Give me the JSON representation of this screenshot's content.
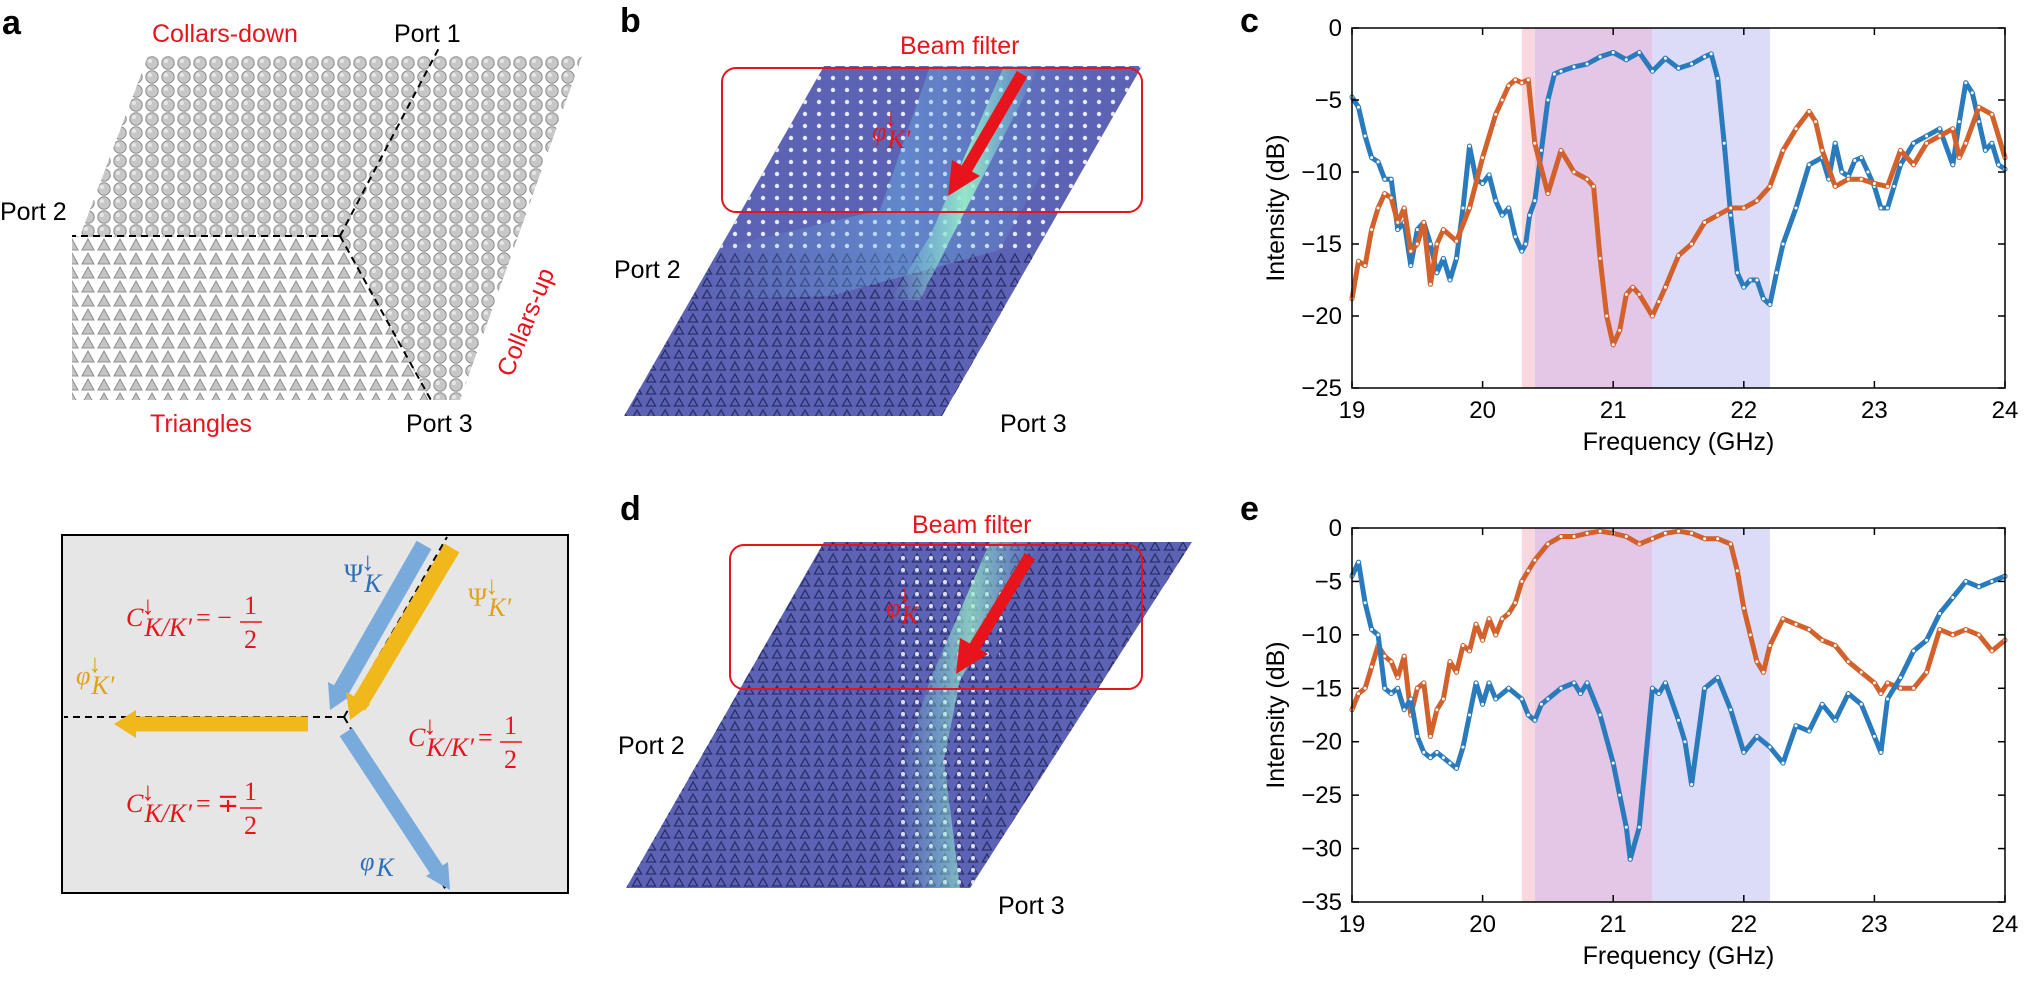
{
  "panels": {
    "a": "a",
    "b": "b",
    "c": "c",
    "d": "d",
    "e": "e"
  },
  "panel_a": {
    "collars_down": "Collars-down",
    "collars_up": "Collars-up",
    "triangles": "Triangles",
    "port1": "Port 1",
    "port2": "Port 2",
    "port3": "Port 3"
  },
  "panel_a_bottom": {
    "psi_K": "Ψ",
    "psi_K_sub": "K",
    "psi_Kp": "Ψ",
    "psi_Kp_sub": "K′",
    "phi_Kp": "φ",
    "phi_Kp_sub": "K′",
    "phi_K": "φ",
    "phi_K_sub": "K",
    "c_sym": "C",
    "c_sub": "K/K′",
    "arrow_sup": "↓",
    "eq1": "= −",
    "eq2": "=",
    "eq3": "= ∓",
    "num": "1",
    "den": "2"
  },
  "panel_b": {
    "beam_filter": "Beam filter",
    "port2": "Port 2",
    "port3": "Port 3",
    "mode": "φ",
    "mode_sub": "K′",
    "mode_sup": "↓"
  },
  "panel_d": {
    "beam_filter": "Beam filter",
    "port2": "Port 2",
    "port3": "Port 3",
    "mode": "φ",
    "mode_sub": "K",
    "mode_sup": "↓"
  },
  "colors": {
    "red": "#e8141c",
    "blue": "#2a7bbd",
    "orange": "#d2612c",
    "pink_band": "#f8d8de",
    "purple_band": "#e4c6e6",
    "lavender_band": "#dcdcf8",
    "lattice": "#5e62b6"
  },
  "chart_data": [
    {
      "panel": "c",
      "type": "line",
      "xlabel": "Frequency (GHz)",
      "ylabel": "Intensity (dB)",
      "xlim": [
        19,
        24
      ],
      "ylim": [
        -25,
        0
      ],
      "xticks": [
        19,
        20,
        21,
        22,
        23,
        24
      ],
      "yticks": [
        0,
        -5,
        -10,
        -15,
        -20,
        -25
      ],
      "bands": [
        {
          "from": 20.3,
          "to": 20.4,
          "color": "#f8d8de"
        },
        {
          "from": 20.4,
          "to": 21.3,
          "color": "#e4c6e6"
        },
        {
          "from": 21.3,
          "to": 22.2,
          "color": "#dcdcf8"
        }
      ],
      "series": [
        {
          "color": "#2a7bbd",
          "x": [
            19.0,
            19.05,
            19.1,
            19.15,
            19.2,
            19.25,
            19.3,
            19.35,
            19.4,
            19.45,
            19.5,
            19.55,
            19.6,
            19.65,
            19.7,
            19.75,
            19.8,
            19.85,
            19.9,
            19.95,
            20.0,
            20.05,
            20.1,
            20.15,
            20.2,
            20.25,
            20.3,
            20.33,
            20.36,
            20.4,
            20.45,
            20.5,
            20.55,
            20.6,
            20.7,
            20.8,
            20.9,
            21.0,
            21.1,
            21.2,
            21.3,
            21.4,
            21.5,
            21.6,
            21.7,
            21.75,
            21.8,
            21.85,
            21.9,
            21.95,
            22.0,
            22.05,
            22.1,
            22.15,
            22.2,
            22.25,
            22.3,
            22.4,
            22.5,
            22.6,
            22.65,
            22.7,
            22.75,
            22.8,
            22.85,
            22.9,
            22.95,
            23.0,
            23.05,
            23.1,
            23.15,
            23.2,
            23.3,
            23.4,
            23.5,
            23.6,
            23.65,
            23.7,
            23.75,
            23.8,
            23.85,
            23.9,
            23.95,
            24.0
          ],
          "y": [
            -4.8,
            -5.5,
            -7.5,
            -9.0,
            -9.3,
            -10.5,
            -10.5,
            -14.0,
            -13.5,
            -16.5,
            -14.0,
            -13.5,
            -15.0,
            -17.0,
            -16.0,
            -17.5,
            -16.0,
            -12.5,
            -8.2,
            -10.5,
            -10.8,
            -10.2,
            -12.0,
            -13.0,
            -12.5,
            -14.5,
            -15.5,
            -15.0,
            -13.0,
            -12.0,
            -8.5,
            -5.0,
            -3.2,
            -3.0,
            -2.7,
            -2.5,
            -2.0,
            -1.7,
            -2.2,
            -1.7,
            -3.0,
            -2.1,
            -2.8,
            -2.5,
            -2.0,
            -1.8,
            -3.5,
            -8.0,
            -13.0,
            -17.0,
            -18.0,
            -17.5,
            -17.5,
            -18.8,
            -19.2,
            -17.0,
            -15.0,
            -12.5,
            -9.5,
            -9.0,
            -10.5,
            -8.0,
            -10.0,
            -10.3,
            -9.2,
            -9.0,
            -10.0,
            -11.0,
            -12.5,
            -12.5,
            -11.0,
            -9.5,
            -8.0,
            -7.5,
            -7.0,
            -9.5,
            -6.5,
            -3.8,
            -4.5,
            -6.5,
            -8.5,
            -8.0,
            -9.5,
            -9.8
          ]
        },
        {
          "color": "#d2612c",
          "x": [
            19.0,
            19.05,
            19.1,
            19.15,
            19.2,
            19.25,
            19.3,
            19.35,
            19.4,
            19.45,
            19.5,
            19.55,
            19.6,
            19.65,
            19.7,
            19.8,
            19.9,
            20.0,
            20.1,
            20.15,
            20.2,
            20.25,
            20.3,
            20.35,
            20.4,
            20.5,
            20.6,
            20.7,
            20.8,
            20.85,
            20.9,
            20.95,
            21.0,
            21.05,
            21.1,
            21.15,
            21.2,
            21.3,
            21.35,
            21.4,
            21.5,
            21.6,
            21.7,
            21.8,
            21.9,
            22.0,
            22.1,
            22.2,
            22.3,
            22.4,
            22.5,
            22.55,
            22.6,
            22.7,
            22.8,
            22.9,
            23.0,
            23.1,
            23.2,
            23.3,
            23.4,
            23.5,
            23.6,
            23.65,
            23.7,
            23.8,
            23.9,
            24.0
          ],
          "y": [
            -18.8,
            -16.2,
            -16.5,
            -14.0,
            -12.5,
            -11.5,
            -11.8,
            -13.5,
            -12.5,
            -15.5,
            -15.0,
            -13.5,
            -17.8,
            -15.0,
            -14.0,
            -14.8,
            -12.5,
            -9.0,
            -6.0,
            -5.0,
            -4.0,
            -3.6,
            -3.8,
            -3.6,
            -8.0,
            -11.5,
            -8.5,
            -10.0,
            -10.5,
            -11.0,
            -16.0,
            -20.0,
            -22.0,
            -21.0,
            -18.5,
            -18.0,
            -18.5,
            -20.0,
            -19.0,
            -18.0,
            -15.8,
            -15.0,
            -13.5,
            -13.0,
            -12.5,
            -12.5,
            -12.0,
            -11.0,
            -8.5,
            -7.0,
            -5.8,
            -6.5,
            -8.5,
            -11.0,
            -10.5,
            -10.5,
            -10.8,
            -11.0,
            -8.5,
            -9.5,
            -8.0,
            -7.5,
            -7.0,
            -9.0,
            -8.0,
            -5.5,
            -6.0,
            -9.0
          ]
        }
      ]
    },
    {
      "panel": "e",
      "type": "line",
      "xlabel": "Frequency (GHz)",
      "ylabel": "Intensity (dB)",
      "xlim": [
        19,
        24
      ],
      "ylim": [
        -35,
        0
      ],
      "xticks": [
        19,
        20,
        21,
        22,
        23,
        24
      ],
      "yticks": [
        0,
        -5,
        -10,
        -15,
        -20,
        -25,
        -30,
        -35
      ],
      "bands": [
        {
          "from": 20.3,
          "to": 20.4,
          "color": "#f8d8de"
        },
        {
          "from": 20.4,
          "to": 21.3,
          "color": "#e4c6e6"
        },
        {
          "from": 21.3,
          "to": 22.2,
          "color": "#dcdcf8"
        }
      ],
      "series": [
        {
          "color": "#d2612c",
          "x": [
            19.0,
            19.05,
            19.1,
            19.15,
            19.2,
            19.25,
            19.3,
            19.35,
            19.4,
            19.45,
            19.5,
            19.55,
            19.6,
            19.65,
            19.7,
            19.75,
            19.8,
            19.85,
            19.9,
            19.95,
            20.0,
            20.05,
            20.1,
            20.15,
            20.2,
            20.25,
            20.3,
            20.35,
            20.4,
            20.5,
            20.6,
            20.7,
            20.8,
            20.9,
            21.0,
            21.1,
            21.2,
            21.3,
            21.4,
            21.5,
            21.6,
            21.7,
            21.8,
            21.9,
            21.95,
            22.0,
            22.05,
            22.1,
            22.15,
            22.2,
            22.3,
            22.4,
            22.5,
            22.6,
            22.7,
            22.8,
            22.9,
            23.0,
            23.05,
            23.1,
            23.2,
            23.3,
            23.4,
            23.5,
            23.6,
            23.7,
            23.8,
            23.9,
            24.0
          ],
          "y": [
            -17.0,
            -15.5,
            -15.0,
            -13.0,
            -11.0,
            -12.0,
            -12.5,
            -14.0,
            -12.0,
            -17.5,
            -15.0,
            -14.5,
            -19.5,
            -17.0,
            -16.0,
            -12.5,
            -13.5,
            -11.0,
            -11.5,
            -9.0,
            -10.5,
            -8.5,
            -10.0,
            -8.5,
            -8.0,
            -7.0,
            -5.0,
            -4.0,
            -3.0,
            -1.5,
            -0.8,
            -0.8,
            -0.5,
            -0.3,
            -0.5,
            -0.8,
            -1.5,
            -1.0,
            -0.5,
            -0.3,
            -0.5,
            -1.0,
            -1.0,
            -1.5,
            -4.0,
            -7.5,
            -10.0,
            -12.5,
            -13.5,
            -11.0,
            -8.5,
            -9.0,
            -9.5,
            -10.5,
            -11.0,
            -12.5,
            -13.5,
            -14.5,
            -15.5,
            -14.5,
            -15.0,
            -15.0,
            -13.5,
            -9.5,
            -10.0,
            -9.5,
            -10.0,
            -11.5,
            -10.5
          ]
        },
        {
          "color": "#2a7bbd",
          "x": [
            19.0,
            19.05,
            19.1,
            19.15,
            19.2,
            19.25,
            19.3,
            19.35,
            19.4,
            19.45,
            19.5,
            19.55,
            19.6,
            19.65,
            19.7,
            19.75,
            19.8,
            19.85,
            19.9,
            19.95,
            20.0,
            20.05,
            20.1,
            20.2,
            20.3,
            20.35,
            20.4,
            20.45,
            20.5,
            20.6,
            20.7,
            20.75,
            20.8,
            20.9,
            21.0,
            21.05,
            21.1,
            21.13,
            21.2,
            21.3,
            21.35,
            21.4,
            21.5,
            21.55,
            21.6,
            21.7,
            21.8,
            21.9,
            22.0,
            22.1,
            22.2,
            22.3,
            22.4,
            22.5,
            22.6,
            22.7,
            22.8,
            22.9,
            23.0,
            23.05,
            23.1,
            23.2,
            23.3,
            23.4,
            23.5,
            23.6,
            23.7,
            23.8,
            23.9,
            24.0
          ],
          "y": [
            -4.5,
            -3.2,
            -7.0,
            -9.5,
            -10.0,
            -15.0,
            -15.5,
            -15.0,
            -17.0,
            -16.0,
            -19.5,
            -21.0,
            -21.5,
            -21.0,
            -21.5,
            -22.0,
            -22.5,
            -20.5,
            -17.5,
            -14.5,
            -16.5,
            -14.5,
            -16.0,
            -15.0,
            -16.0,
            -17.5,
            -18.0,
            -16.5,
            -16.0,
            -15.0,
            -14.5,
            -15.5,
            -14.5,
            -17.5,
            -22.0,
            -25.0,
            -28.0,
            -31.0,
            -28.0,
            -15.0,
            -15.5,
            -14.5,
            -18.0,
            -20.0,
            -24.0,
            -15.0,
            -14.0,
            -17.0,
            -21.0,
            -19.5,
            -20.5,
            -22.0,
            -18.5,
            -19.0,
            -16.5,
            -18.0,
            -15.5,
            -16.5,
            -19.5,
            -21.0,
            -16.0,
            -14.0,
            -11.5,
            -10.5,
            -8.0,
            -6.5,
            -5.0,
            -5.5,
            -5.0,
            -4.5
          ]
        }
      ]
    }
  ]
}
